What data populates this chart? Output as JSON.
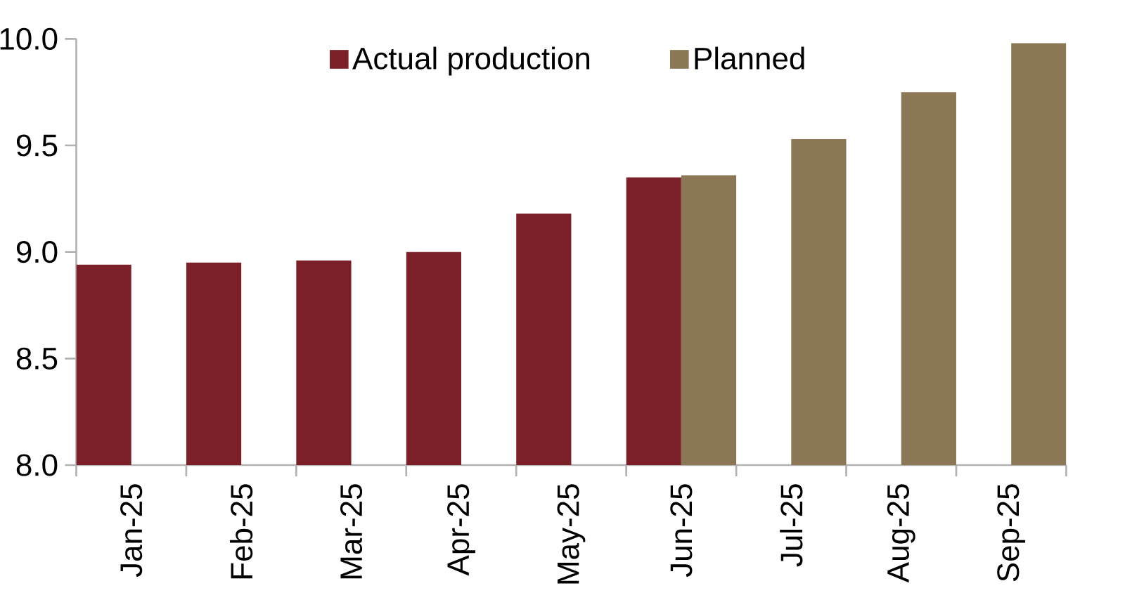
{
  "chart_data": {
    "type": "bar",
    "categories": [
      "Jan-25",
      "Feb-25",
      "Mar-25",
      "Apr-25",
      "May-25",
      "Jun-25",
      "Jul-25",
      "Aug-25",
      "Sep-25"
    ],
    "series": [
      {
        "name": "Actual production",
        "color": "#7b2029",
        "values": [
          8.94,
          8.95,
          8.96,
          9.0,
          9.18,
          9.35,
          null,
          null,
          null
        ]
      },
      {
        "name": "Planned",
        "color": "#8b7755",
        "values": [
          null,
          null,
          null,
          null,
          null,
          9.36,
          9.53,
          9.75,
          9.98
        ]
      }
    ],
    "ylim": [
      8.0,
      10.0
    ],
    "yticks": [
      {
        "value": 8.0,
        "label": "8.0"
      },
      {
        "value": 8.5,
        "label": "8.5"
      },
      {
        "value": 9.0,
        "label": "9.0"
      },
      {
        "value": 9.5,
        "label": "9.5"
      },
      {
        "value": 10.0,
        "label": "10.0"
      }
    ],
    "grid": false,
    "legend": "top"
  }
}
